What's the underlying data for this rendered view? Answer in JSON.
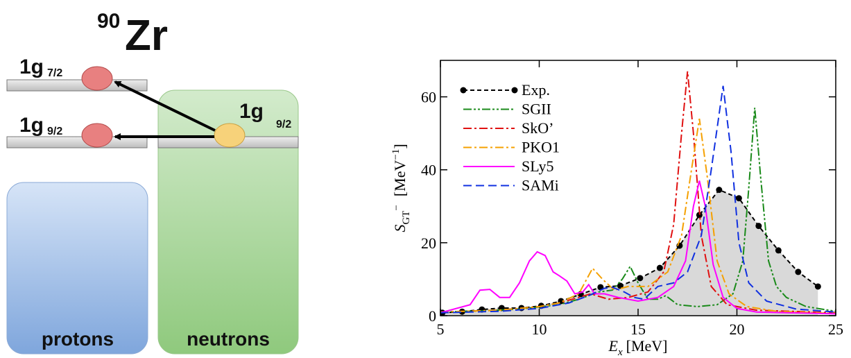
{
  "diagram": {
    "nucleus": {
      "mass_number": "90",
      "symbol": "Zr"
    },
    "levels": [
      {
        "label": "1g",
        "sub": "7/2"
      },
      {
        "label": "1g",
        "sub": "9/2"
      },
      {
        "label": "1g",
        "sub": "9/2"
      }
    ],
    "boxes": [
      "protons",
      "neutrons"
    ]
  },
  "chart_data": {
    "type": "line",
    "xlabel": {
      "symbol": "E",
      "sub": "x",
      "unit": "[MeV]"
    },
    "ylabel": {
      "symbol": "S",
      "sub": "GT",
      "sup": "−",
      "unit": "[MeV",
      "unit_sup": "−1",
      "close": "]"
    },
    "xlim": [
      5,
      25
    ],
    "ylim": [
      0,
      70
    ],
    "xticks": [
      5,
      10,
      15,
      20,
      25
    ],
    "yticks": [
      0,
      20,
      40,
      60
    ],
    "legend": "upper left",
    "series": [
      {
        "name": "Exp.",
        "color": "#000000",
        "dash": "dashed",
        "marker": "circle",
        "shade": "#d9d9d9",
        "x": [
          5.1,
          6.1,
          7.1,
          8.1,
          9.1,
          10.1,
          11.1,
          12.1,
          13.1,
          14.1,
          15.1,
          16.1,
          17.1,
          18.1,
          19.1,
          20.1,
          21.1,
          22.1,
          23.1,
          24.1
        ],
        "values": [
          0.8,
          1.1,
          1.7,
          2.1,
          2.1,
          2.7,
          4,
          5.9,
          7.8,
          8.2,
          10.3,
          13.1,
          19.2,
          27.6,
          34.5,
          32.2,
          24.6,
          17.9,
          12,
          8
        ]
      },
      {
        "name": "SGII",
        "color": "#1a8a1a",
        "dash": "dashdotdot",
        "x": [
          5,
          7,
          9,
          11,
          12,
          13,
          13.7,
          14.2,
          14.6,
          15,
          15.5,
          16,
          16.4,
          17,
          18,
          19,
          19.8,
          20.3,
          20.6,
          20.9,
          21.2,
          21.6,
          22,
          22.5,
          23.5,
          25
        ],
        "values": [
          1,
          1.3,
          1.8,
          3,
          4.5,
          6.5,
          7,
          10,
          13.5,
          9,
          4.5,
          4.5,
          5.5,
          3,
          2.5,
          3,
          6,
          15,
          35,
          57,
          38,
          15,
          8,
          5,
          2.5,
          1.2
        ]
      },
      {
        "name": "SkO’",
        "color": "#e01010",
        "dash": "dashdot",
        "x": [
          5,
          8,
          10,
          11,
          12,
          12.6,
          13.5,
          14.5,
          15.5,
          16.3,
          16.8,
          17.2,
          17.5,
          17.8,
          18.2,
          18.7,
          19.5,
          21,
          25
        ],
        "values": [
          1,
          1.5,
          2.5,
          3.5,
          5,
          6,
          4.5,
          5,
          6.5,
          12,
          25,
          50,
          67,
          50,
          22,
          8,
          3,
          1.5,
          0.8
        ]
      },
      {
        "name": "PKO1",
        "color": "#f5a000",
        "dash": "dashdot",
        "x": [
          5,
          8,
          10,
          11,
          12,
          12.7,
          13.2,
          13.8,
          14.5,
          15.5,
          16.5,
          17.2,
          17.7,
          18.1,
          18.5,
          19,
          19.6,
          20.5,
          22,
          25
        ],
        "values": [
          1,
          1.5,
          2.5,
          3.5,
          6,
          13,
          10,
          7,
          8,
          8,
          12,
          22,
          40,
          54,
          38,
          15,
          6,
          2.5,
          1.2,
          0.6
        ]
      },
      {
        "name": "SLy5",
        "color": "#ff00ff",
        "dash": "solid",
        "x": [
          5,
          6.5,
          7,
          7.5,
          8,
          8.5,
          9,
          9.5,
          9.9,
          10.3,
          10.7,
          11,
          11.4,
          11.8,
          12.2,
          12.5,
          12.8,
          13.3,
          14,
          15,
          16,
          16.8,
          17.4,
          17.8,
          18.1,
          18.4,
          18.8,
          19.3,
          20,
          21,
          25
        ],
        "values": [
          0.8,
          3,
          7,
          7.2,
          5,
          5,
          9,
          15,
          17.5,
          16.5,
          12,
          11,
          9.5,
          6,
          6.5,
          8.5,
          6,
          6,
          5,
          4,
          5,
          8,
          15,
          30,
          37,
          30,
          14,
          5,
          2,
          1,
          0.5
        ]
      },
      {
        "name": "SAMi",
        "color": "#1030e0",
        "dash": "longdash",
        "x": [
          5,
          8,
          10,
          11.5,
          12.5,
          13.3,
          13.7,
          14.3,
          14.8,
          15.3,
          16,
          16.8,
          17.5,
          18.2,
          18.7,
          19.3,
          19.7,
          20.1,
          20.6,
          21.5,
          23,
          25
        ],
        "values": [
          0.8,
          1.2,
          2,
          3.5,
          5.5,
          7.5,
          7.8,
          6.5,
          5,
          4.5,
          8,
          9,
          12,
          22,
          40,
          63,
          45,
          20,
          9,
          4,
          1.8,
          1
        ]
      }
    ]
  }
}
